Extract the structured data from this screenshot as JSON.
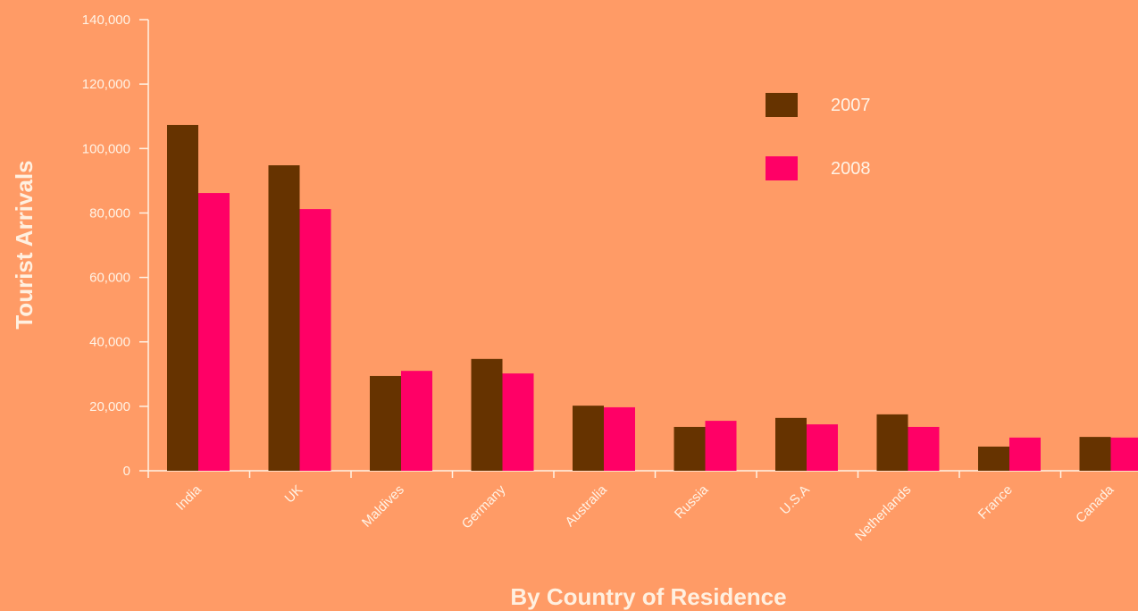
{
  "chart_data": {
    "type": "bar",
    "x_label": "By Country of Residence",
    "y_label": "Tourist Arrivals",
    "categories": [
      "India",
      "UK",
      "Maldives",
      "Germany",
      "Australia",
      "Russia",
      "U.S.A",
      "Netherlands",
      "France",
      "Canada"
    ],
    "series": [
      {
        "name": "2007",
        "color": "#663300",
        "values": [
          107300,
          94800,
          29400,
          34700,
          20200,
          13600,
          16400,
          17500,
          7500,
          10500
        ]
      },
      {
        "name": "2008",
        "color": "#ff0066",
        "values": [
          86200,
          81200,
          31000,
          30200,
          19700,
          15500,
          14400,
          13600,
          10300,
          10300
        ]
      }
    ],
    "ylim": [
      0,
      140000
    ],
    "yticks": [
      0,
      {
        "value": 20000,
        "label": "20,000"
      },
      {
        "value": 40000,
        "label": "40,000"
      },
      {
        "value": 60000,
        "label": "60,000"
      },
      {
        "value": 80000,
        "label": "80,000"
      },
      {
        "value": 100000,
        "label": "100,000"
      },
      {
        "value": 120000,
        "label": "120,000"
      },
      {
        "value": 140000,
        "label": "140,000"
      }
    ],
    "legend": "upper right"
  }
}
